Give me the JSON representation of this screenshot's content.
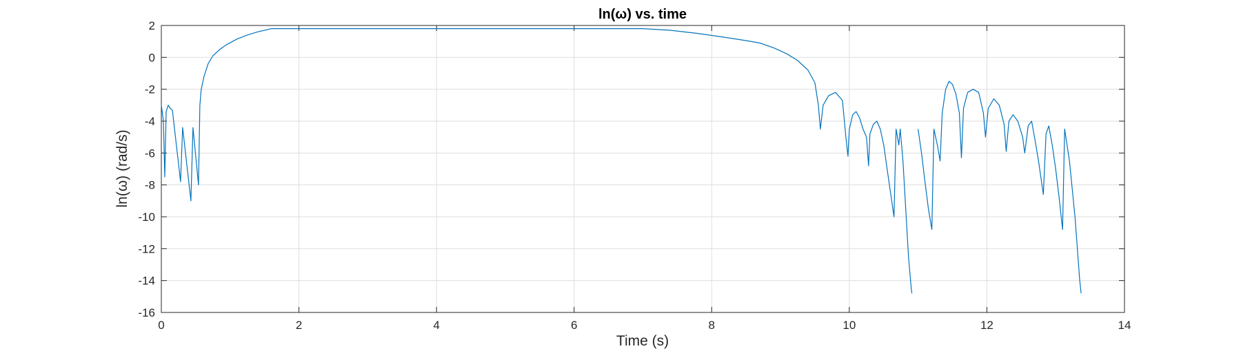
{
  "chart_data": {
    "type": "line",
    "title": "ln(ω)  vs. time",
    "xlabel": "Time (s)",
    "ylabel": "ln(ω) (rad/s)",
    "xlim": [
      0,
      14
    ],
    "ylim": [
      -16,
      2
    ],
    "grid": true,
    "xticks": [
      0,
      2,
      4,
      6,
      8,
      10,
      12,
      14
    ],
    "xtick_labels": [
      "0",
      "2",
      "4",
      "6",
      "8",
      "10",
      "12",
      "14"
    ],
    "yticks": [
      2,
      0,
      -2,
      -4,
      -6,
      -8,
      -10,
      -12,
      -14,
      -16
    ],
    "ytick_labels": [
      "2",
      "0",
      "-2",
      "-4",
      "-6",
      "-8",
      "-10",
      "-12",
      "-14",
      "-16"
    ],
    "color": "#0072BD",
    "series": [
      {
        "name": "ln(omega)",
        "segments": [
          [
            [
              0.0,
              -3.0
            ],
            [
              0.03,
              -4.0
            ],
            [
              0.05,
              -7.5
            ],
            [
              0.07,
              -3.4
            ],
            [
              0.1,
              -3.0
            ],
            [
              0.13,
              -3.2
            ],
            [
              0.16,
              -3.3
            ],
            [
              0.28,
              -7.8
            ],
            [
              0.31,
              -4.4
            ],
            [
              0.43,
              -9.0
            ],
            [
              0.46,
              -4.4
            ],
            [
              0.54,
              -8.0
            ],
            [
              0.56,
              -3.0
            ],
            [
              0.58,
              -2.0
            ],
            [
              0.62,
              -1.2
            ],
            [
              0.68,
              -0.4
            ],
            [
              0.75,
              0.1
            ],
            [
              0.85,
              0.5
            ],
            [
              0.95,
              0.8
            ],
            [
              1.1,
              1.15
            ],
            [
              1.25,
              1.4
            ],
            [
              1.4,
              1.6
            ],
            [
              1.55,
              1.75
            ],
            [
              1.6,
              1.8
            ],
            [
              2.0,
              1.8
            ],
            [
              3.0,
              1.8
            ],
            [
              4.0,
              1.8
            ],
            [
              5.0,
              1.8
            ],
            [
              6.0,
              1.8
            ],
            [
              7.0,
              1.8
            ],
            [
              7.4,
              1.7
            ],
            [
              7.8,
              1.5
            ],
            [
              8.2,
              1.25
            ],
            [
              8.5,
              1.05
            ],
            [
              8.7,
              0.9
            ],
            [
              8.9,
              0.6
            ],
            [
              9.1,
              0.2
            ],
            [
              9.25,
              -0.2
            ],
            [
              9.4,
              -0.8
            ],
            [
              9.5,
              -1.6
            ],
            [
              9.55,
              -3.0
            ],
            [
              9.58,
              -4.5
            ],
            [
              9.62,
              -3.0
            ],
            [
              9.7,
              -2.4
            ],
            [
              9.8,
              -2.2
            ],
            [
              9.9,
              -2.7
            ],
            [
              9.95,
              -5.0
            ],
            [
              9.98,
              -6.2
            ],
            [
              10.0,
              -4.5
            ],
            [
              10.05,
              -3.6
            ],
            [
              10.1,
              -3.4
            ],
            [
              10.15,
              -3.8
            ],
            [
              10.2,
              -4.5
            ],
            [
              10.25,
              -5.0
            ],
            [
              10.28,
              -6.8
            ],
            [
              10.3,
              -4.8
            ],
            [
              10.35,
              -4.2
            ],
            [
              10.4,
              -4.0
            ],
            [
              10.45,
              -4.5
            ],
            [
              10.5,
              -5.5
            ],
            [
              10.55,
              -7.0
            ],
            [
              10.6,
              -8.5
            ],
            [
              10.65,
              -10.0
            ],
            [
              10.68,
              -4.5
            ],
            [
              10.72,
              -5.5
            ],
            [
              10.74,
              -4.5
            ],
            [
              10.78,
              -6.5
            ],
            [
              10.82,
              -9.5
            ],
            [
              10.86,
              -12.5
            ],
            [
              10.9,
              -14.5
            ],
            [
              10.91,
              -14.8
            ]
          ],
          [
            [
              11.0,
              -4.5
            ],
            [
              11.05,
              -6.0
            ],
            [
              11.1,
              -7.8
            ],
            [
              11.15,
              -9.5
            ],
            [
              11.2,
              -10.8
            ],
            [
              11.23,
              -4.5
            ],
            [
              11.28,
              -5.5
            ],
            [
              11.32,
              -6.5
            ],
            [
              11.35,
              -3.5
            ],
            [
              11.4,
              -2.0
            ],
            [
              11.45,
              -1.5
            ],
            [
              11.5,
              -1.7
            ],
            [
              11.55,
              -2.3
            ],
            [
              11.6,
              -3.5
            ],
            [
              11.63,
              -6.3
            ],
            [
              11.66,
              -3.2
            ],
            [
              11.72,
              -2.2
            ],
            [
              11.8,
              -2.0
            ],
            [
              11.88,
              -2.2
            ],
            [
              11.95,
              -3.5
            ],
            [
              11.98,
              -5.0
            ],
            [
              12.02,
              -3.2
            ],
            [
              12.1,
              -2.6
            ],
            [
              12.18,
              -3.0
            ],
            [
              12.25,
              -4.2
            ],
            [
              12.28,
              -5.9
            ],
            [
              12.32,
              -4.0
            ],
            [
              12.38,
              -3.6
            ],
            [
              12.45,
              -4.0
            ],
            [
              12.52,
              -5.0
            ],
            [
              12.55,
              -6.0
            ],
            [
              12.6,
              -4.3
            ],
            [
              12.65,
              -4.0
            ],
            [
              12.7,
              -5.2
            ],
            [
              12.75,
              -6.5
            ],
            [
              12.82,
              -8.6
            ],
            [
              12.86,
              -4.8
            ],
            [
              12.9,
              -4.3
            ],
            [
              12.95,
              -5.5
            ],
            [
              13.0,
              -7.0
            ],
            [
              13.05,
              -8.8
            ],
            [
              13.1,
              -10.8
            ],
            [
              13.13,
              -4.5
            ],
            [
              13.2,
              -6.5
            ],
            [
              13.28,
              -10.0
            ],
            [
              13.35,
              -14.0
            ],
            [
              13.37,
              -14.8
            ]
          ]
        ]
      }
    ]
  }
}
